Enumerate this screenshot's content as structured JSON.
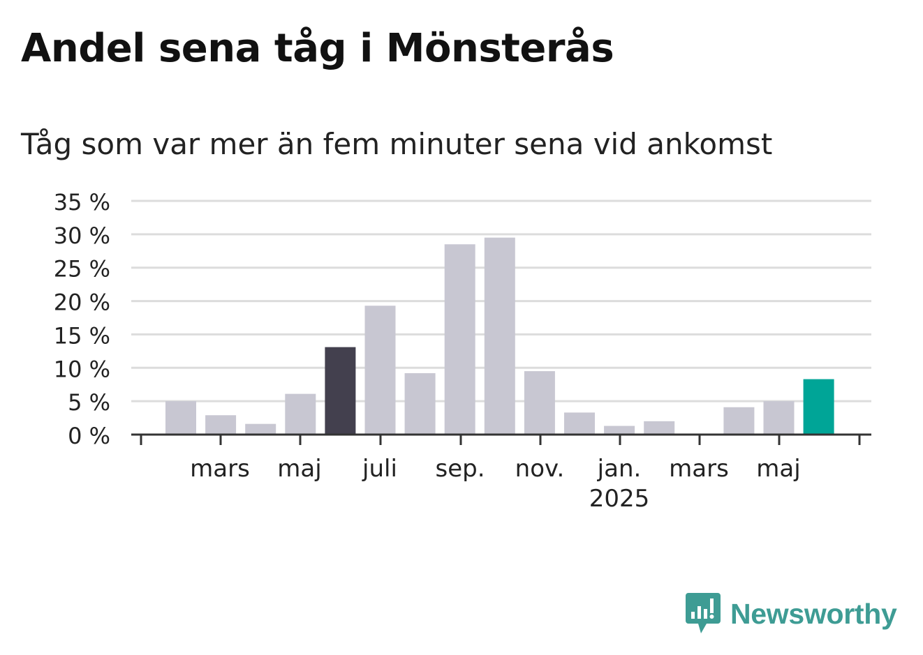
{
  "title": "Andel sena tåg i Mönsterås",
  "subtitle": "Tåg som var mer än fem minuter sena vid ankomst",
  "logo": {
    "text": "Newsworthy",
    "icon": "newsworthy-bubble-chart-icon",
    "color": "#3e9c94"
  },
  "colors": {
    "bar_default": "#c8c7d2",
    "bar_highlight": "#43404e",
    "bar_latest": "#00a597",
    "grid": "#dcdcdc",
    "axis": "#333333",
    "text": "#222222"
  },
  "chart_data": {
    "type": "bar",
    "title": "Andel sena tåg i Mönsterås",
    "subtitle": "Tåg som var mer än fem minuter sena vid ankomst",
    "xlabel": "",
    "ylabel": "",
    "ylim": [
      0,
      35
    ],
    "y_ticks": [
      0,
      5,
      10,
      15,
      20,
      25,
      30,
      35
    ],
    "y_tick_labels": [
      "0 %",
      "5 %",
      "10 %",
      "15 %",
      "20 %",
      "25 %",
      "30 %",
      "35 %"
    ],
    "grid": true,
    "x_tick_labels": [
      {
        "label": "mars",
        "sublabel": ""
      },
      {
        "label": "maj",
        "sublabel": ""
      },
      {
        "label": "juli",
        "sublabel": ""
      },
      {
        "label": "sep.",
        "sublabel": ""
      },
      {
        "label": "nov.",
        "sublabel": ""
      },
      {
        "label": "jan.",
        "sublabel": "2025"
      },
      {
        "label": "mars",
        "sublabel": ""
      },
      {
        "label": "maj",
        "sublabel": ""
      }
    ],
    "categories": [
      "2024-02",
      "2024-03",
      "2024-04",
      "2024-05",
      "2024-06",
      "2024-07",
      "2024-08",
      "2024-09",
      "2024-10",
      "2024-11",
      "2024-12",
      "2025-01",
      "2025-02",
      "2025-03",
      "2025-04",
      "2025-05",
      "2025-06"
    ],
    "values": [
      5.0,
      2.9,
      1.6,
      6.1,
      13.1,
      19.3,
      9.2,
      28.5,
      29.5,
      9.5,
      3.3,
      1.3,
      2.0,
      0,
      4.1,
      5.0,
      8.3
    ],
    "highlight_index": 4,
    "latest_index": 16
  }
}
